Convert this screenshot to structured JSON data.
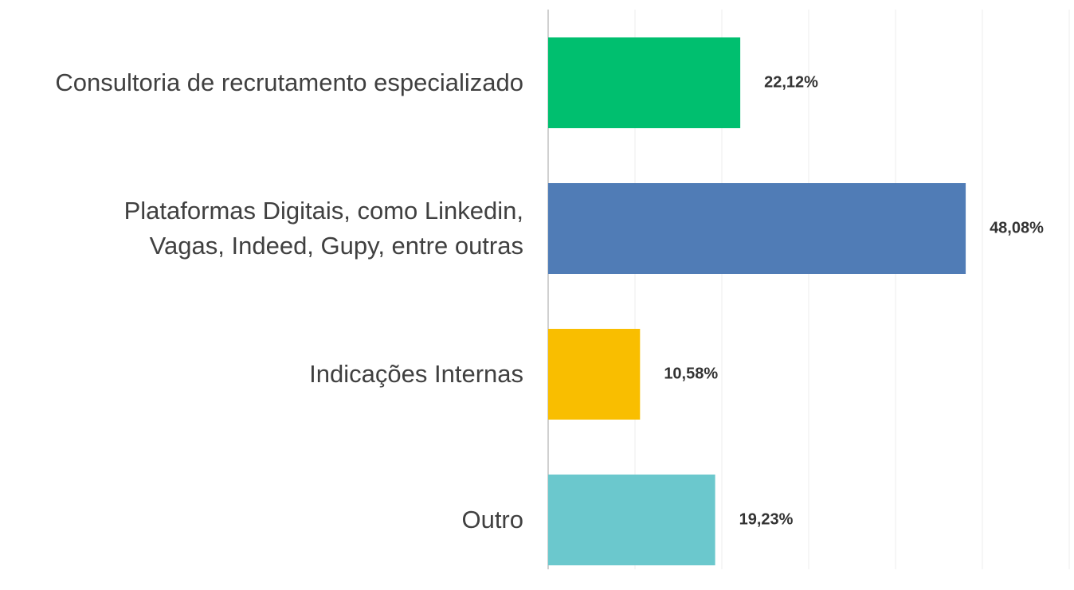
{
  "chart_data": {
    "type": "bar",
    "orientation": "horizontal",
    "categories": [
      "Consultoria de recrutamento especializado",
      "Plataformas Digitais, como Linkedin,\nVagas, Indeed, Gupy, entre outras",
      "Indicações Internas",
      "Outro"
    ],
    "values": [
      22.12,
      48.08,
      10.58,
      19.23
    ],
    "value_labels": [
      "22,12%",
      "48,08%",
      "10,58%",
      "19,23%"
    ],
    "colors": [
      "#00bf6f",
      "#507cb6",
      "#f9be00",
      "#6bc8cd"
    ],
    "xlim": [
      0,
      60
    ],
    "xticks": [
      0,
      10,
      20,
      30,
      40,
      50,
      60
    ],
    "grid": true
  }
}
